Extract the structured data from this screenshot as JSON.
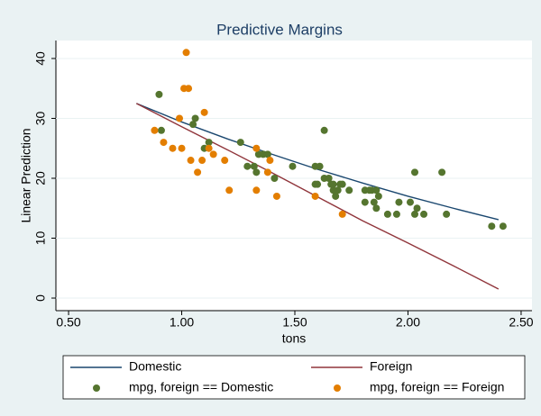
{
  "chart_data": {
    "type": "scatter",
    "title": "Predictive Margins",
    "x_label": "tons",
    "y_label": "Linear Prediction",
    "xlim": [
      0.444,
      2.548
    ],
    "ylim": [
      -2.1,
      43
    ],
    "xticks": [
      {
        "value": 0.5,
        "label": "0.50"
      },
      {
        "value": 1.0,
        "label": "1.00"
      },
      {
        "value": 1.5,
        "label": "1.50"
      },
      {
        "value": 2.0,
        "label": "2.00"
      },
      {
        "value": 2.5,
        "label": "2.50"
      }
    ],
    "yticks": [
      0,
      10,
      20,
      30,
      40
    ],
    "grid": true,
    "series": [
      {
        "name": "Domestic",
        "type": "line",
        "color": "#1a476f",
        "x": [
          0.8,
          1.0,
          1.2,
          1.4,
          1.6,
          1.8,
          2.0,
          2.2,
          2.4
        ],
        "values": [
          32.5,
          29.4,
          26.6,
          24.0,
          21.5,
          19.2,
          17.0,
          15.0,
          13.1
        ]
      },
      {
        "name": "Foreign",
        "type": "line",
        "color": "#90353b",
        "x": [
          0.8,
          1.0,
          1.2,
          1.4,
          1.6,
          1.8,
          2.0,
          2.2,
          2.4
        ],
        "values": [
          32.5,
          28.6,
          24.8,
          20.9,
          16.9,
          12.9,
          9.2,
          5.4,
          1.5
        ]
      },
      {
        "name": "mpg, foreign == Domestic",
        "type": "scatter",
        "color": "#55752f",
        "x": [
          0.9,
          0.91,
          1.05,
          1.06,
          1.12,
          1.1,
          1.26,
          1.29,
          1.32,
          1.33,
          1.34,
          1.36,
          1.38,
          1.41,
          1.49,
          1.59,
          1.61,
          1.59,
          1.63,
          1.63,
          1.65,
          1.66,
          1.67,
          1.68,
          1.69,
          1.7,
          1.71,
          1.74,
          1.81,
          1.81,
          1.83,
          1.84,
          1.85,
          1.86,
          1.87,
          1.91,
          1.95,
          1.96,
          2.01,
          2.03,
          2.03,
          2.04,
          2.07,
          2.15,
          2.17,
          2.37,
          2.42,
          1.86,
          1.6,
          1.67
        ],
        "values": [
          34,
          28,
          29,
          30,
          26,
          25,
          26,
          22,
          22,
          21,
          24,
          24,
          24,
          20,
          22,
          22,
          22,
          19,
          28,
          20,
          20,
          19,
          18,
          17,
          18,
          19,
          19,
          18,
          18,
          16,
          18,
          18,
          16,
          15,
          17,
          14,
          14,
          16,
          16,
          21,
          14,
          15,
          14,
          21,
          14,
          12,
          12,
          18,
          19,
          19
        ]
      },
      {
        "name": "mpg, foreign == Foreign",
        "type": "scatter",
        "color": "#e37e00",
        "x": [
          0.88,
          0.92,
          0.96,
          0.99,
          1.0,
          1.01,
          1.02,
          1.03,
          1.04,
          1.07,
          1.09,
          1.1,
          1.12,
          1.14,
          1.19,
          1.21,
          1.33,
          1.33,
          1.38,
          1.39,
          1.42,
          1.59,
          1.71
        ],
        "values": [
          28,
          26,
          25,
          30,
          25,
          35,
          41,
          35,
          23,
          21,
          23,
          31,
          25,
          24,
          23,
          18,
          25,
          18,
          21,
          23,
          17,
          17,
          14
        ]
      }
    ]
  }
}
